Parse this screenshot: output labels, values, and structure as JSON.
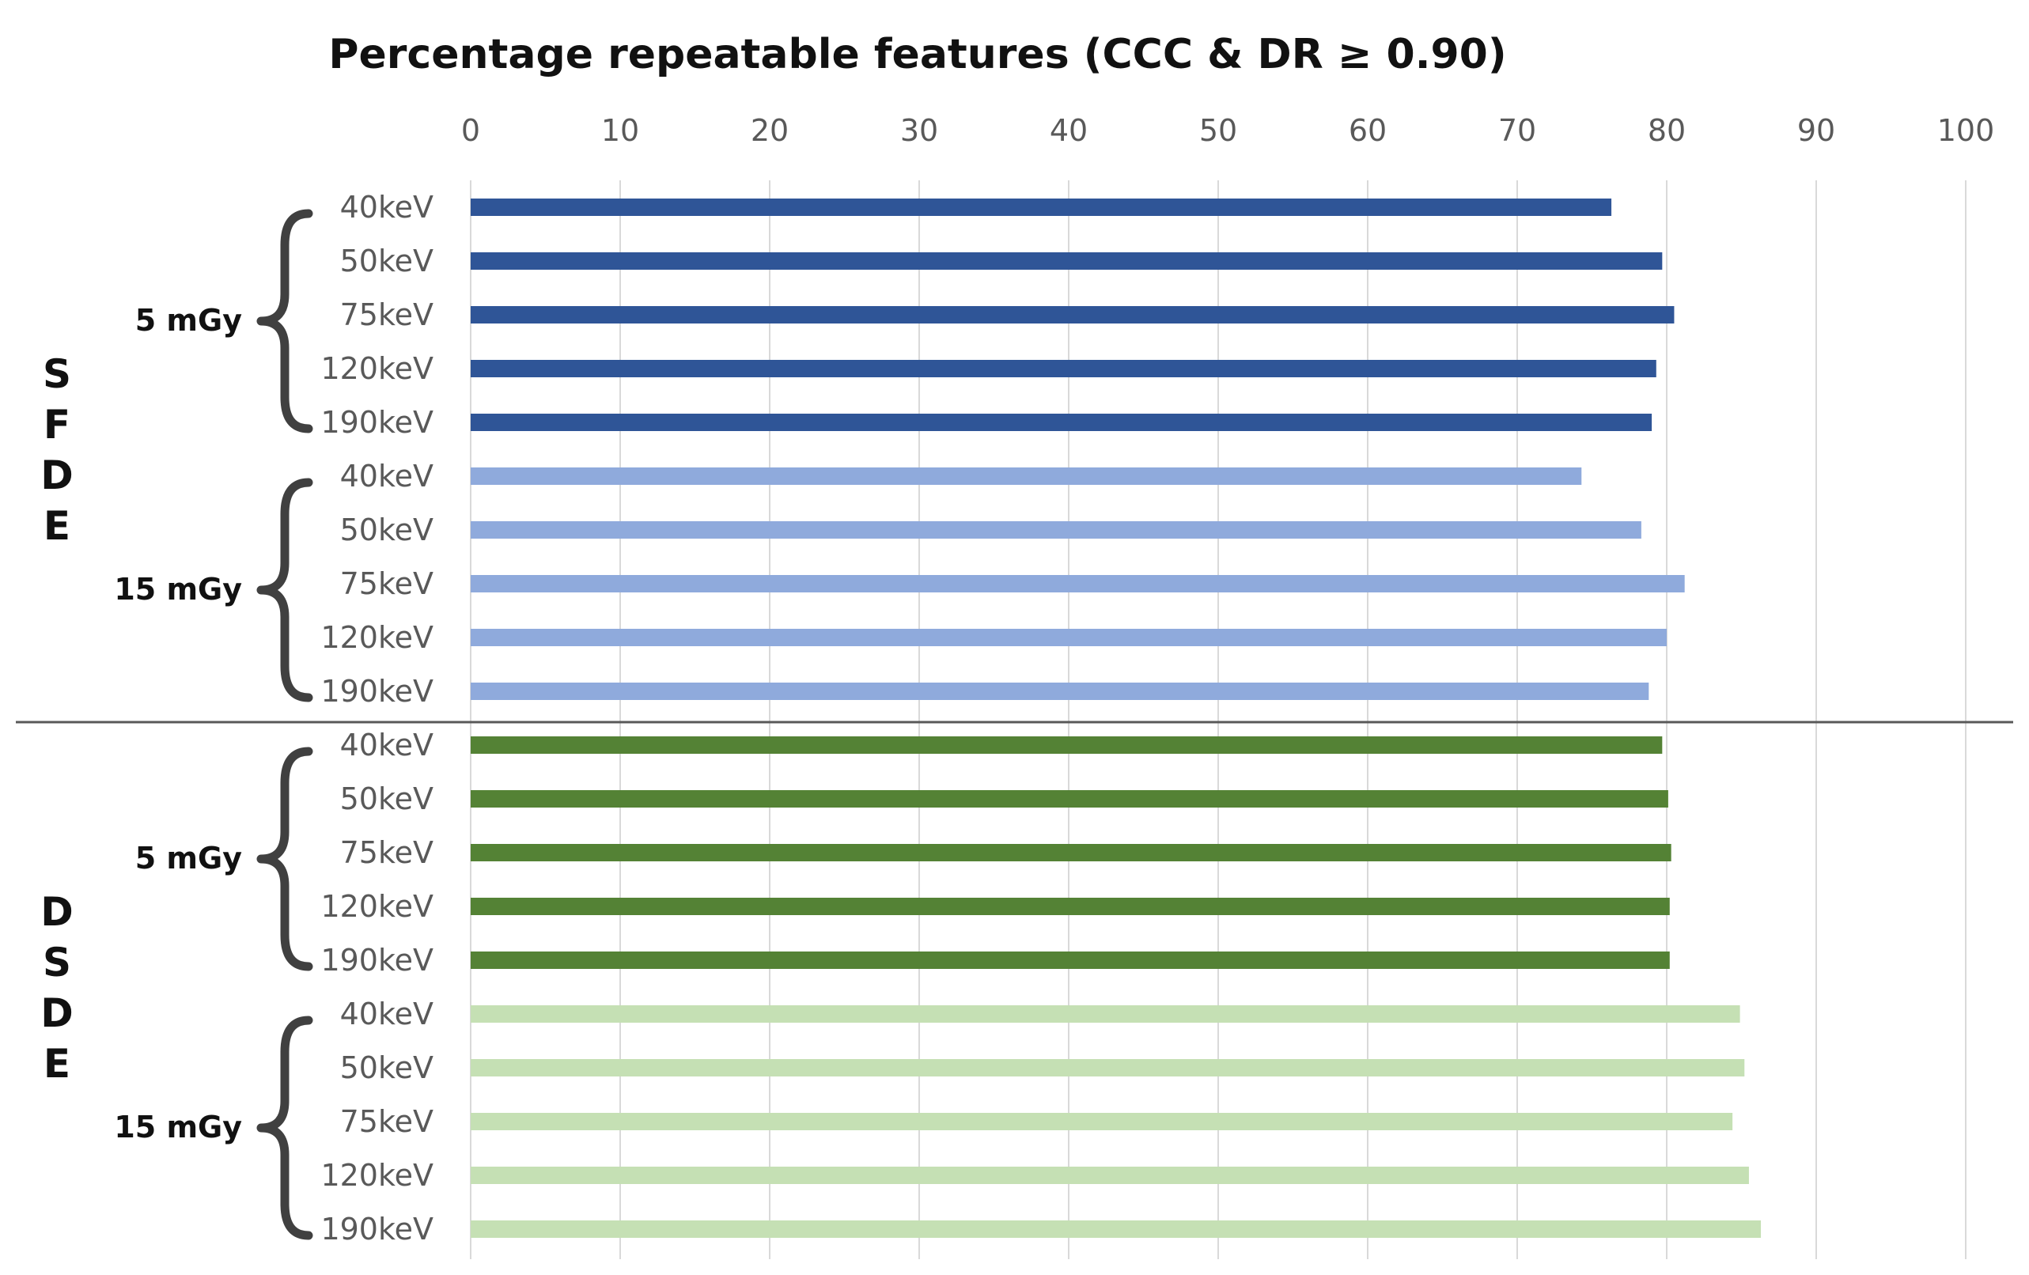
{
  "chart_data": {
    "type": "bar",
    "orientation": "horizontal",
    "title": "Percentage repeatable features (CCC & DR ≥ 0.90)",
    "xlim": [
      0,
      100
    ],
    "xticks": [
      "0",
      "10",
      "20",
      "30",
      "40",
      "50",
      "60",
      "70",
      "80",
      "90",
      "100"
    ],
    "xaxis_position": "top",
    "grid": true,
    "groups": [
      {
        "label": "SFDE",
        "letters": [
          "S",
          "F",
          "D",
          "E"
        ],
        "subgroups": [
          {
            "dose": "5 mGy",
            "color": "#2f5597",
            "categories": [
              "40keV",
              "50keV",
              "75keV",
              "120keV",
              "190keV"
            ],
            "values": [
              76.3,
              79.7,
              80.5,
              79.3,
              79.0
            ]
          },
          {
            "dose": "15 mGy",
            "color": "#8faadc",
            "categories": [
              "40keV",
              "50keV",
              "75keV",
              "120keV",
              "190keV"
            ],
            "values": [
              74.3,
              78.3,
              81.2,
              80.0,
              78.8
            ]
          }
        ]
      },
      {
        "label": "DSDE",
        "letters": [
          "D",
          "S",
          "D",
          "E"
        ],
        "subgroups": [
          {
            "dose": "5 mGy",
            "color": "#548235",
            "categories": [
              "40keV",
              "50keV",
              "75keV",
              "120keV",
              "190keV"
            ],
            "values": [
              79.7,
              80.1,
              80.3,
              80.2,
              80.2
            ]
          },
          {
            "dose": "15 mGy",
            "color": "#c5e0b4",
            "categories": [
              "40keV",
              "50keV",
              "75keV",
              "120keV",
              "190keV"
            ],
            "values": [
              84.9,
              85.2,
              84.4,
              85.5,
              86.3
            ]
          }
        ]
      }
    ]
  }
}
